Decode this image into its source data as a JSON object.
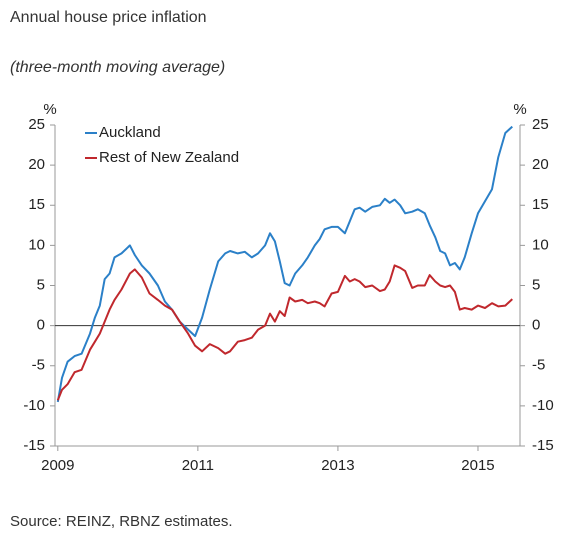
{
  "chart_data": {
    "type": "line",
    "title": "Annual house price inflation",
    "subtitle": "(three-month moving average)",
    "source": "Source: REINZ, RBNZ estimates.",
    "y_unit": "%",
    "y2_unit": "%",
    "x": [
      2009.0,
      2009.06,
      2009.14,
      2009.24,
      2009.34,
      2009.46,
      2009.53,
      2009.6,
      2009.67,
      2009.74,
      2009.81,
      2009.91,
      2010.03,
      2010.1,
      2010.2,
      2010.31,
      2010.43,
      2010.53,
      2010.63,
      2010.74,
      2010.86,
      2010.96,
      2011.06,
      2011.17,
      2011.29,
      2011.39,
      2011.46,
      2011.57,
      2011.67,
      2011.77,
      2011.86,
      2011.96,
      2012.03,
      2012.1,
      2012.17,
      2012.24,
      2012.31,
      2012.39,
      2012.49,
      2012.57,
      2012.67,
      2012.74,
      2012.81,
      2012.91,
      2013.0,
      2013.1,
      2013.17,
      2013.24,
      2013.31,
      2013.39,
      2013.49,
      2013.6,
      2013.67,
      2013.74,
      2013.81,
      2013.89,
      2013.96,
      2014.06,
      2014.14,
      2014.24,
      2014.31,
      2014.39,
      2014.46,
      2014.53,
      2014.6,
      2014.67,
      2014.74,
      2014.81,
      2014.91,
      2015.0,
      2015.1,
      2015.2,
      2015.29,
      2015.39,
      2015.49
    ],
    "series": [
      {
        "name": "Auckland",
        "color": "#2b80c8",
        "values": [
          -9.5,
          -6.5,
          -4.5,
          -3.8,
          -3.5,
          -1,
          1,
          2.5,
          5.8,
          6.5,
          8.5,
          9,
          10,
          8.8,
          7.5,
          6.5,
          5,
          3,
          2,
          0.5,
          -0.5,
          -1.3,
          1,
          4.5,
          8,
          9,
          9.3,
          9,
          9.2,
          8.5,
          9,
          10,
          11.5,
          10.5,
          8,
          5.3,
          5,
          6.5,
          7.5,
          8.5,
          10,
          10.8,
          12,
          12.3,
          12.3,
          11.5,
          13,
          14.5,
          14.7,
          14.2,
          14.8,
          15,
          15.8,
          15.3,
          15.7,
          15,
          14,
          14.2,
          14.5,
          14,
          12.5,
          11,
          9.3,
          9,
          7.5,
          7.8,
          7,
          8.5,
          11.5,
          14,
          15.5,
          17,
          21,
          24,
          24.8
        ]
      },
      {
        "name": "Rest of New Zealand",
        "color": "#c0282d",
        "values": [
          -9.3,
          -8,
          -7.3,
          -5.8,
          -5.5,
          -3,
          -2,
          -1,
          0.5,
          2,
          3.2,
          4.5,
          6.5,
          7,
          6,
          4,
          3.2,
          2.5,
          2,
          0.5,
          -1,
          -2.5,
          -3.2,
          -2.3,
          -2.8,
          -3.5,
          -3.2,
          -2,
          -1.8,
          -1.5,
          -0.5,
          0,
          1.5,
          0.5,
          1.8,
          1.2,
          3.5,
          3,
          3.2,
          2.8,
          3,
          2.8,
          2.4,
          4,
          4.2,
          6.2,
          5.5,
          5.8,
          5.5,
          4.8,
          5,
          4.3,
          4.5,
          5.5,
          7.5,
          7.2,
          6.8,
          4.7,
          5,
          5,
          6.3,
          5.5,
          5,
          4.8,
          5,
          4.2,
          2,
          2.2,
          2,
          2.5,
          2.2,
          2.8,
          2.4,
          2.5,
          3.3
        ]
      }
    ],
    "xlim": [
      2008.96,
      2015.6
    ],
    "xticks": [
      2009,
      2011,
      2013,
      2015
    ],
    "ylim": [
      -15,
      25
    ],
    "yticks": [
      -15,
      -10,
      -5,
      0,
      5,
      10,
      15,
      20,
      25
    ],
    "y2lim": [
      -15,
      25
    ],
    "y2ticks": [
      -15,
      -10,
      -5,
      0,
      5,
      10,
      15,
      20,
      25
    ],
    "legend": "upper left",
    "grid": false
  }
}
